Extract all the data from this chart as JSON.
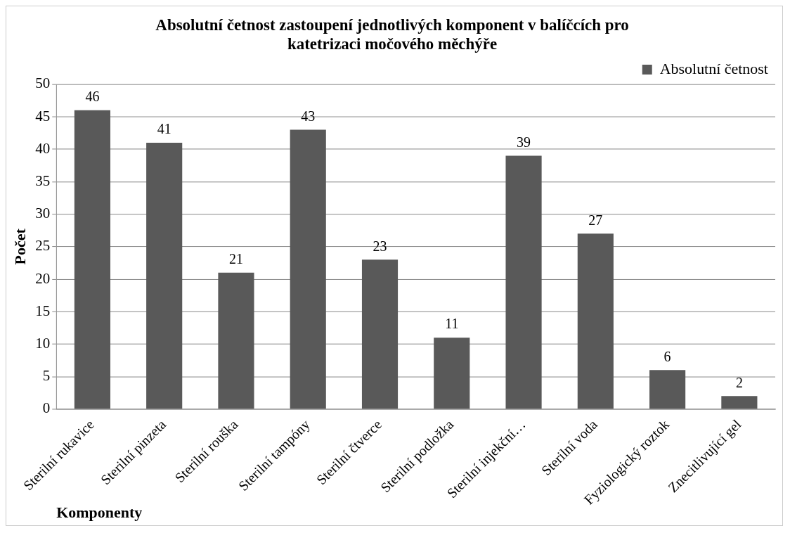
{
  "chart_data": {
    "type": "bar",
    "title": "Absolutní četnost zastoupení jednotlivých komponent v balíčcích pro katetrizaci močového měchýře",
    "xlabel": "Komponenty",
    "ylabel": "Počet",
    "categories": [
      "Sterilní rukavice",
      "Sterilní pinzeta",
      "Sterilní rouška",
      "Sterilní tampóny",
      "Sterilní čtverce",
      "Sterilní podložka",
      "Sterilní injekční…",
      "Sterilní voda",
      "Fyziologický roztok",
      "Znecitlivující gel"
    ],
    "series": [
      {
        "name": "Absolutní četnost",
        "color": "#595959",
        "values": [
          46,
          41,
          21,
          43,
          23,
          11,
          39,
          27,
          6,
          2
        ]
      }
    ],
    "ylim": [
      0,
      50
    ],
    "yticks": [
      0,
      5,
      10,
      15,
      20,
      25,
      30,
      35,
      40,
      45,
      50
    ],
    "grid": "y",
    "legend": "top right",
    "data_labels": true
  }
}
